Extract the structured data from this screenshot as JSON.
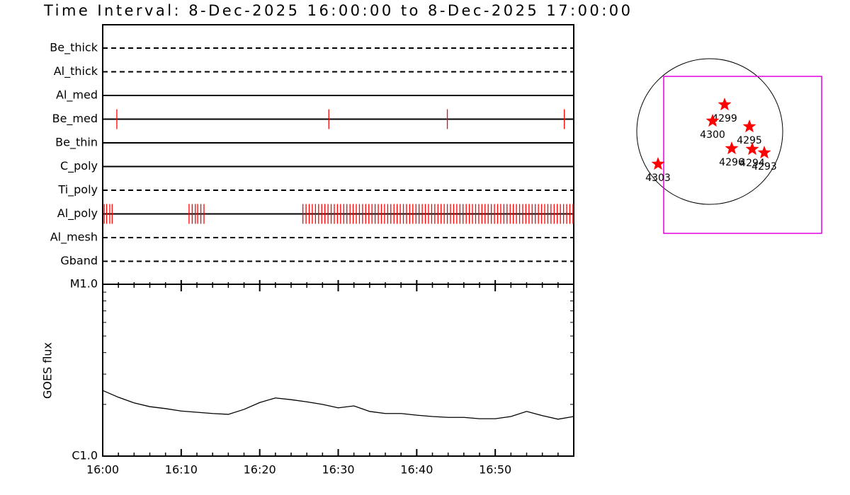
{
  "title": "Time Interval:  8-Dec-2025 16:00:00 to  8-Dec-2025 17:00:00",
  "timeline": {
    "xlim": [
      0,
      60
    ],
    "rows": [
      {
        "label": "Be_thick",
        "style": "dashed",
        "events": []
      },
      {
        "label": "Al_thick",
        "style": "dashed",
        "events": []
      },
      {
        "label": "Al_med",
        "style": "solid",
        "events": []
      },
      {
        "label": "Be_med",
        "style": "solid",
        "events": [
          1.8,
          28.8,
          43.9,
          58.8
        ]
      },
      {
        "label": "Be_thin",
        "style": "solid",
        "events": []
      },
      {
        "label": "C_poly",
        "style": "solid",
        "events": []
      },
      {
        "label": "Ti_poly",
        "style": "dashed",
        "events": []
      },
      {
        "label": "Al_poly",
        "style": "solid",
        "events": [
          0.2,
          0.5,
          0.9,
          1.2,
          11.0,
          11.4,
          11.8,
          12.1,
          12.5,
          12.9,
          25.5,
          25.9,
          26.3,
          26.7,
          27.1,
          27.5,
          27.9,
          28.3,
          28.7,
          29.1,
          29.5,
          29.9,
          30.3,
          30.7,
          31.1,
          31.5,
          31.9,
          32.3,
          32.7,
          33.1,
          33.5,
          33.9,
          34.3,
          34.7,
          35.1,
          35.5,
          35.9,
          36.3,
          36.7,
          37.1,
          37.5,
          37.9,
          38.3,
          38.7,
          39.1,
          39.5,
          39.9,
          40.3,
          40.7,
          41.1,
          41.5,
          41.9,
          42.3,
          42.7,
          43.1,
          43.5,
          43.9,
          44.3,
          44.7,
          45.1,
          45.5,
          45.9,
          46.3,
          46.7,
          47.1,
          47.5,
          47.9,
          48.3,
          48.7,
          49.1,
          49.5,
          49.9,
          50.3,
          50.7,
          51.1,
          51.5,
          51.9,
          52.3,
          52.7,
          53.1,
          53.5,
          53.9,
          54.3,
          54.7,
          55.1,
          55.5,
          55.9,
          56.3,
          56.7,
          57.1,
          57.5,
          57.9,
          58.3,
          58.7,
          59.1,
          59.5,
          59.9
        ]
      },
      {
        "label": "Al_mesh",
        "style": "dashed",
        "events": []
      },
      {
        "label": "Gband",
        "style": "dashed",
        "events": []
      }
    ],
    "event_color": "#ff0000"
  },
  "chart_data": {
    "type": "line",
    "ylabel": "GOES flux",
    "log": true,
    "color": "#000000",
    "x": [
      0,
      2,
      4,
      6,
      8,
      10,
      12,
      14,
      16,
      18,
      20,
      22,
      24,
      26,
      28,
      30,
      32,
      34,
      36,
      38,
      40,
      42,
      44,
      46,
      48,
      50,
      52,
      54,
      56,
      58,
      60
    ],
    "values": [
      2.41e-06,
      2.2e-06,
      2.04e-06,
      1.94e-06,
      1.89e-06,
      1.83e-06,
      1.8e-06,
      1.77e-06,
      1.75e-06,
      1.87e-06,
      2.05e-06,
      2.18e-06,
      2.13e-06,
      2.07e-06,
      2e-06,
      1.91e-06,
      1.96e-06,
      1.82e-06,
      1.77e-06,
      1.77e-06,
      1.73e-06,
      1.7e-06,
      1.68e-06,
      1.68e-06,
      1.65e-06,
      1.65e-06,
      1.7e-06,
      1.82e-06,
      1.72e-06,
      1.64e-06,
      1.7e-06
    ],
    "xlim": [
      0,
      60
    ],
    "xticks": [
      {
        "value": 0,
        "label": "16:00"
      },
      {
        "value": 10,
        "label": "16:10"
      },
      {
        "value": 20,
        "label": "16:20"
      },
      {
        "value": 30,
        "label": "16:30"
      },
      {
        "value": 40,
        "label": "16:40"
      },
      {
        "value": 50,
        "label": "16:50"
      }
    ],
    "xminor": [
      2,
      4,
      6,
      8,
      12,
      14,
      16,
      18,
      22,
      24,
      26,
      28,
      32,
      34,
      36,
      38,
      42,
      44,
      46,
      48,
      52,
      54,
      56,
      58
    ],
    "ylim": [
      1e-06,
      1e-05
    ],
    "yticks": [
      {
        "value": 1e-06,
        "label": "C1.0"
      },
      {
        "value": 1e-05,
        "label": "M1.0"
      }
    ],
    "yminor": [
      2e-06,
      3e-06,
      4e-06,
      5e-06,
      6e-06,
      7e-06,
      8e-06,
      9e-06
    ]
  },
  "map": {
    "regions": [
      "4299",
      "4300",
      "4295",
      "4296",
      "4294",
      "4293",
      "4303"
    ],
    "star_color": "#ff0000",
    "box_color": "#e000e0"
  }
}
